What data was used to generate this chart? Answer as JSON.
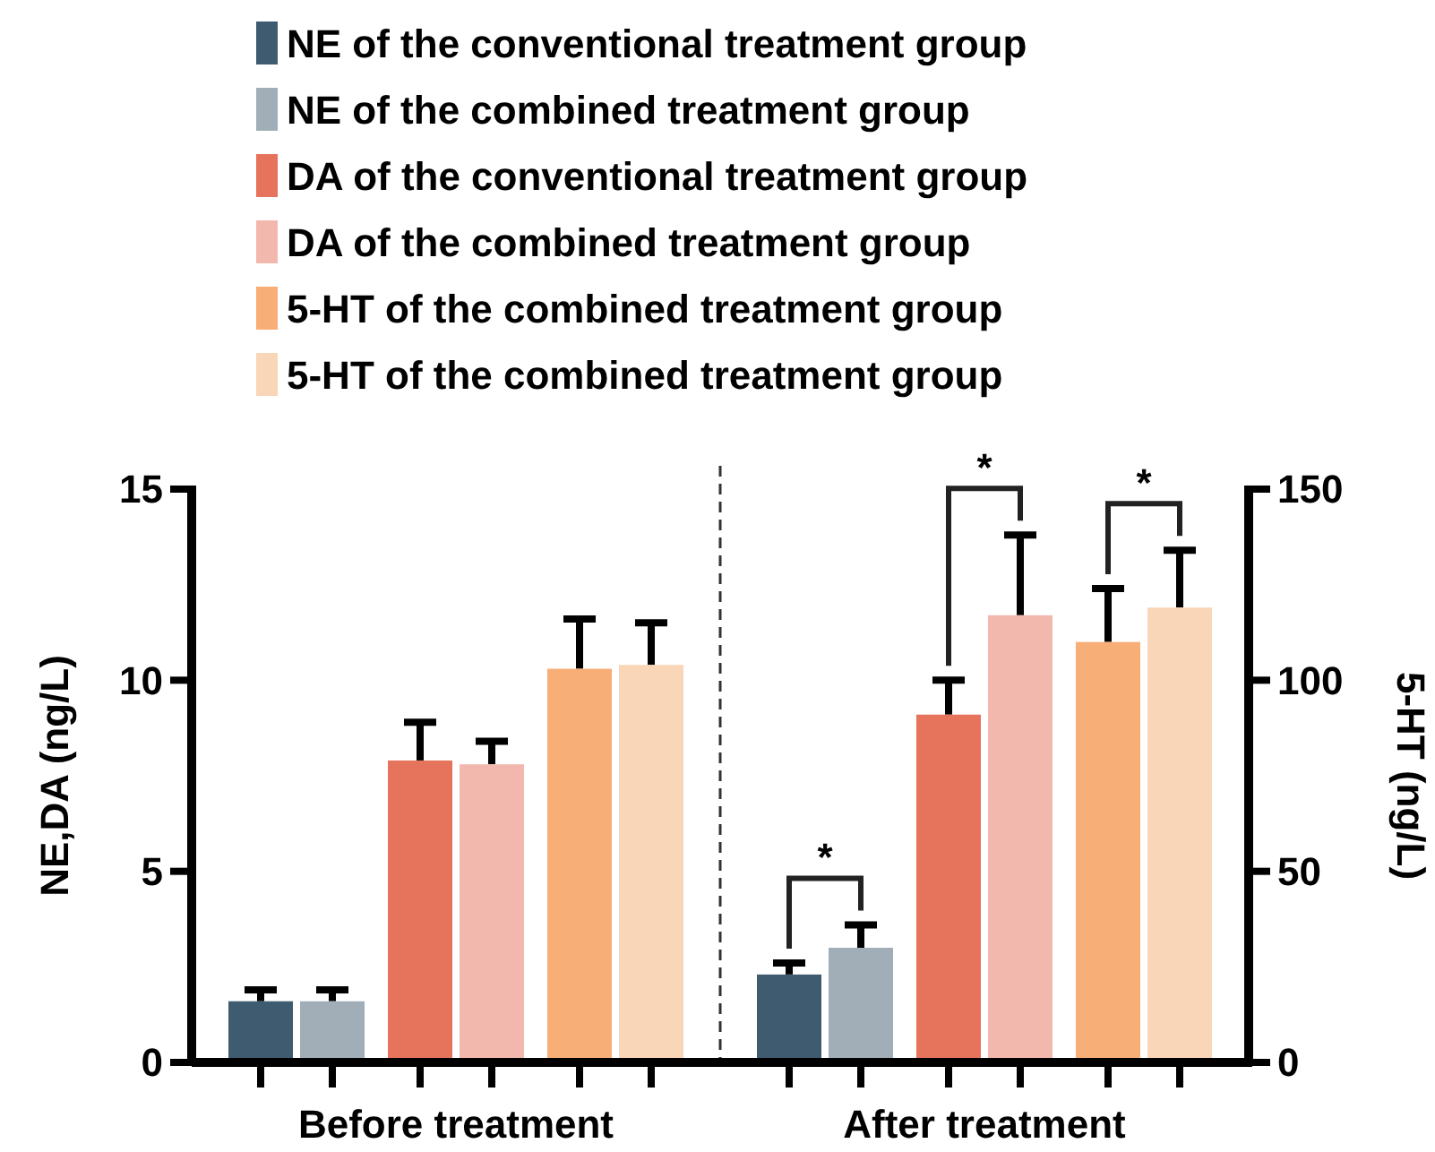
{
  "chart_data": {
    "type": "bar",
    "categories": [
      "Before treatment",
      "After treatment"
    ],
    "ylabel": "NE,DA (ng/L)",
    "y2label": "5-HT (ng/L)",
    "ylim": [
      0,
      15
    ],
    "yticks": [
      0,
      5,
      10,
      15
    ],
    "y2lim": [
      0,
      150
    ],
    "y2ticks": [
      0,
      50,
      100,
      150
    ],
    "legend": "top",
    "grid": false,
    "series": [
      {
        "name": "NE of the conventional treatment group",
        "color": "#3f5b6f",
        "values": [
          1.6,
          2.3
        ],
        "errors": [
          0.3,
          0.3
        ]
      },
      {
        "name": "NE of the combined treatment group",
        "color": "#a1aeb7",
        "values": [
          1.6,
          3.0
        ],
        "errors": [
          0.3,
          0.6
        ]
      },
      {
        "name": "DA of the conventional treatment group",
        "color": "#e6735c",
        "values": [
          7.9,
          9.1
        ],
        "errors": [
          1.0,
          0.9
        ]
      },
      {
        "name": "DA of the combined treatment group",
        "color": "#f3b8ad",
        "values": [
          7.8,
          11.7
        ],
        "errors": [
          0.6,
          2.1
        ]
      },
      {
        "name": "5-HT of the combined treatment group",
        "color": "#f8ae77",
        "values": [
          103,
          110
        ],
        "errors": [
          13,
          14
        ],
        "axis": "y2"
      },
      {
        "name": "5-HT of the combined treatment group",
        "color": "#f9d6b8",
        "values": [
          104,
          119
        ],
        "errors": [
          11,
          15
        ],
        "axis": "y2"
      }
    ],
    "annotations": [
      "*",
      "*",
      "*"
    ]
  }
}
